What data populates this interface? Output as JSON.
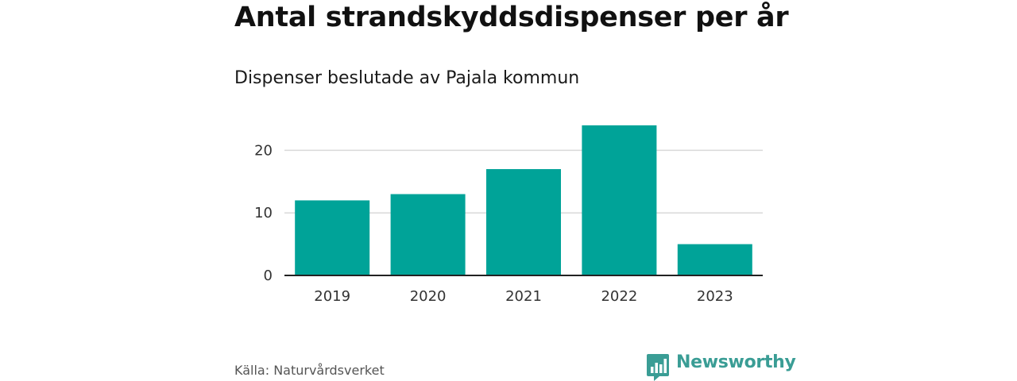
{
  "header": {
    "title": "Antal strandskyddsdispenser per år",
    "subtitle": "Dispenser beslutade av Pajala kommun"
  },
  "footer": {
    "source": "Källa: Naturvårdsverket",
    "brand": "Newsworthy",
    "brand_icon": "bar-chart-speech-bubble-icon"
  },
  "colors": {
    "bar": "#00a398",
    "grid": "#d9d9d9",
    "axis": "#222222",
    "brand": "#3a9d95"
  },
  "chart_data": {
    "type": "bar",
    "title": "Antal strandskyddsdispenser per år",
    "subtitle": "Dispenser beslutade av Pajala kommun",
    "categories": [
      "2019",
      "2020",
      "2021",
      "2022",
      "2023"
    ],
    "values": [
      12,
      13,
      17,
      24,
      5
    ],
    "xlabel": "",
    "ylabel": "",
    "ylim": [
      0,
      25
    ],
    "yticks": [
      0,
      10,
      20
    ],
    "grid": true,
    "legend": "none"
  }
}
